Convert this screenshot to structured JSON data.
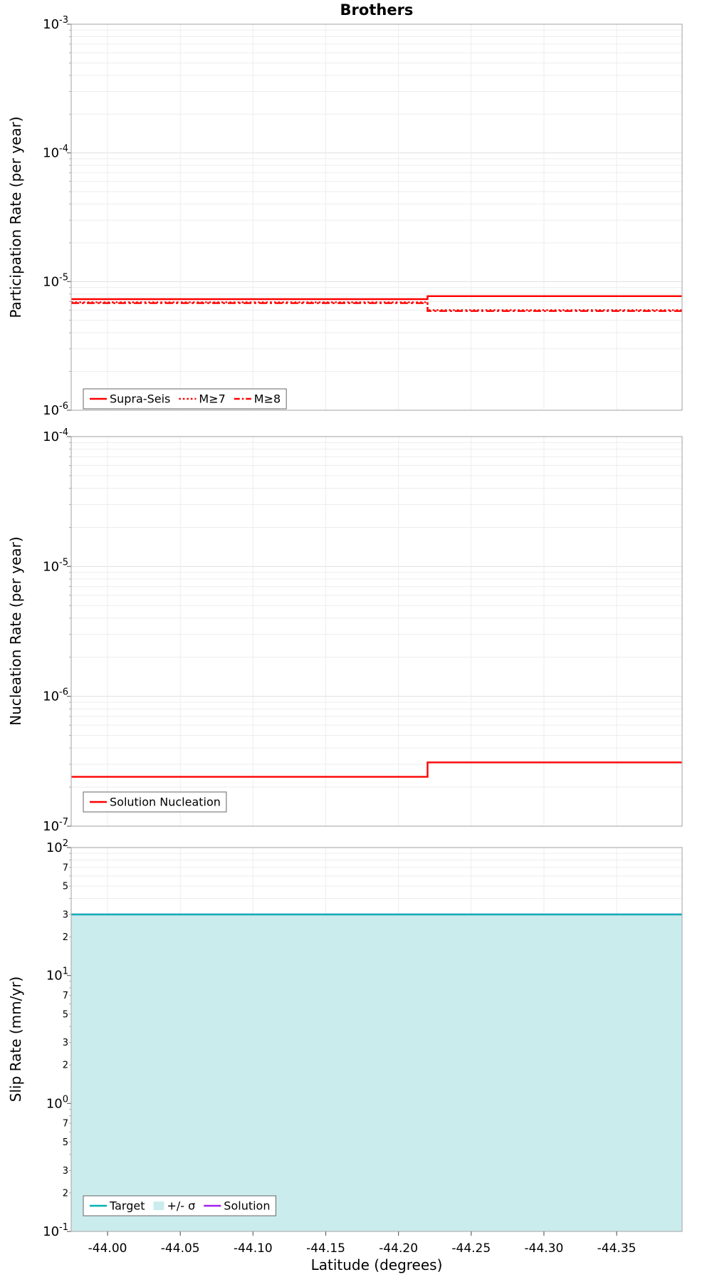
{
  "page": {
    "title": "Brothers",
    "xlabel": "Latitude (degrees)"
  },
  "x_axis": {
    "label": "Latitude (degrees)",
    "range": [
      -43.975,
      -44.395
    ],
    "tick_values": [
      -44.0,
      -44.05,
      -44.1,
      -44.15,
      -44.2,
      -44.25,
      -44.3,
      -44.35
    ],
    "ticks": [
      "-44.00",
      "-44.05",
      "-44.10",
      "-44.15",
      "-44.20",
      "-44.25",
      "-44.30",
      "-44.35"
    ]
  },
  "chart_data": [
    {
      "type": "line",
      "panel": "participation",
      "ylabel": "Participation Rate (per year)",
      "yscale": "log",
      "ylim": [
        1e-06,
        0.001
      ],
      "ytick_exponents": [
        "-3",
        "-4",
        "-5",
        "-6"
      ],
      "grid": true,
      "legend_position": "bottom-left",
      "series": [
        {
          "name": "Supra-Seis",
          "color": "#ff0000",
          "style": "solid",
          "points": [
            [
              -43.975,
              7.3e-06
            ],
            [
              -44.22,
              7.3e-06
            ],
            [
              -44.22,
              7.7e-06
            ],
            [
              -44.395,
              7.7e-06
            ]
          ]
        },
        {
          "name": "M≥7",
          "color": "#ff0000",
          "style": "dotted",
          "points": [
            [
              -43.975,
              6.9e-06
            ],
            [
              -44.22,
              6.9e-06
            ],
            [
              -44.22,
              6e-06
            ],
            [
              -44.395,
              6e-06
            ]
          ]
        },
        {
          "name": "M≥8",
          "color": "#ff0000",
          "style": "dashdot",
          "points": [
            [
              -43.975,
              6.8e-06
            ],
            [
              -44.22,
              6.8e-06
            ],
            [
              -44.22,
              5.9e-06
            ],
            [
              -44.395,
              5.9e-06
            ]
          ]
        }
      ],
      "legend": [
        {
          "label": "Supra-Seis",
          "color": "#ff0000",
          "style": "solid"
        },
        {
          "label": "M≥7",
          "color": "#ff0000",
          "style": "dotted"
        },
        {
          "label": "M≥8",
          "color": "#ff0000",
          "style": "dashdot"
        }
      ]
    },
    {
      "type": "line",
      "panel": "nucleation",
      "ylabel": "Nucleation Rate (per year)",
      "yscale": "log",
      "ylim": [
        1e-07,
        0.0001
      ],
      "ytick_exponents": [
        "-4",
        "-5",
        "-6",
        "-7"
      ],
      "grid": true,
      "legend_position": "bottom-left",
      "series": [
        {
          "name": "Solution Nucleation",
          "color": "#ff0000",
          "style": "solid",
          "points": [
            [
              -43.975,
              2.4e-07
            ],
            [
              -44.22,
              2.4e-07
            ],
            [
              -44.22,
              3.1e-07
            ],
            [
              -44.395,
              3.1e-07
            ]
          ]
        }
      ],
      "legend": [
        {
          "label": "Solution Nucleation",
          "color": "#ff0000",
          "style": "solid"
        }
      ]
    },
    {
      "type": "line",
      "panel": "slip-rate",
      "ylabel": "Slip Rate (mm/yr)",
      "yscale": "log",
      "ylim": [
        0.1,
        100
      ],
      "ytick_exponents": [
        "2",
        "1",
        "0",
        "-1"
      ],
      "minor_tick_labels": [
        "7",
        "5",
        "3",
        "2"
      ],
      "grid": true,
      "legend_position": "bottom-left",
      "series": [
        {
          "name": "+/- σ",
          "type": "band",
          "color": "#cbecec",
          "points_upper": [
            [
              -43.975,
              30
            ],
            [
              -44.395,
              30
            ]
          ],
          "points_lower": [
            [
              -43.975,
              0.1
            ],
            [
              -44.395,
              0.1
            ]
          ]
        },
        {
          "name": "Solution",
          "color": "#a020f0",
          "style": "solid",
          "points": [
            [
              -43.975,
              30
            ],
            [
              -44.395,
              30
            ]
          ]
        },
        {
          "name": "Target",
          "color": "#00b2b2",
          "style": "solid",
          "points": [
            [
              -43.975,
              30
            ],
            [
              -44.395,
              30
            ]
          ]
        }
      ],
      "legend": [
        {
          "label": "Target",
          "color": "#00b2b2",
          "style": "solid"
        },
        {
          "label": "+/- σ",
          "color": "#cbecec",
          "swatch": true
        },
        {
          "label": "Solution",
          "color": "#a020f0",
          "style": "solid"
        }
      ]
    }
  ],
  "colors": {
    "red": "#ff0000",
    "teal": "#00b2b2",
    "band": "#cbecec",
    "purple": "#a020f0"
  }
}
